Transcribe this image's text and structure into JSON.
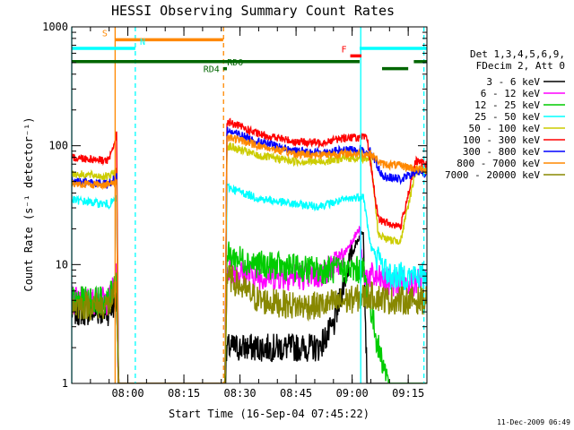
{
  "chart_data": {
    "type": "line",
    "title": "HESSI Observing Summary Count Rates",
    "xlabel": "Start Time (16-Sep-04 07:45:22)",
    "ylabel": "Count Rate (s⁻¹ detector⁻¹)",
    "yscale": "log",
    "ylim": [
      1,
      1000
    ],
    "xlim_minutes": [
      0,
      95
    ],
    "x_ticks": [
      {
        "min": 15,
        "label": "08:00"
      },
      {
        "min": 30,
        "label": "08:15"
      },
      {
        "min": 45,
        "label": "08:30"
      },
      {
        "min": 60,
        "label": "08:45"
      },
      {
        "min": 75,
        "label": "09:00"
      },
      {
        "min": 90,
        "label": "09:15"
      }
    ],
    "y_ticks": [
      {
        "v": 1,
        "label": "1"
      },
      {
        "v": 10,
        "label": "10"
      },
      {
        "v": 100,
        "label": "100"
      },
      {
        "v": 1000,
        "label": "1000"
      }
    ],
    "legend": {
      "placement": "right",
      "header": [
        "Det 1,3,4,5,6,9,",
        "FDecim 2, Att 0"
      ]
    },
    "series": [
      {
        "name": "3 - 6 keV",
        "color": "#000000",
        "points": [
          [
            0,
            4
          ],
          [
            10,
            4
          ],
          [
            12,
            5
          ],
          [
            12.5,
            1
          ],
          [
            41,
            1
          ],
          [
            41.5,
            2
          ],
          [
            52,
            2
          ],
          [
            66,
            2
          ],
          [
            70,
            3
          ],
          [
            74,
            10
          ],
          [
            76,
            15
          ],
          [
            78,
            20
          ],
          [
            79,
            1
          ],
          [
            95,
            1
          ]
        ]
      },
      {
        "name": "6 - 12 keV",
        "color": "#ff00ff",
        "points": [
          [
            0,
            5
          ],
          [
            10,
            5
          ],
          [
            12,
            8
          ],
          [
            12.5,
            1
          ],
          [
            41,
            1
          ],
          [
            41.5,
            9
          ],
          [
            50,
            8
          ],
          [
            66,
            8
          ],
          [
            72,
            11
          ],
          [
            75,
            16
          ],
          [
            77,
            20
          ],
          [
            78,
            8
          ],
          [
            80,
            8
          ],
          [
            85,
            7
          ],
          [
            95,
            7
          ]
        ]
      },
      {
        "name": "12 - 25 keV",
        "color": "#00cc00",
        "points": [
          [
            0,
            5
          ],
          [
            10,
            5
          ],
          [
            12,
            8
          ],
          [
            12.5,
            1
          ],
          [
            41,
            1
          ],
          [
            41.5,
            12
          ],
          [
            50,
            10
          ],
          [
            66,
            9
          ],
          [
            78,
            9
          ],
          [
            82,
            2
          ],
          [
            85,
            1
          ],
          [
            95,
            1
          ]
        ]
      },
      {
        "name": "25 - 50 keV",
        "color": "#00ffff",
        "points": [
          [
            0,
            35
          ],
          [
            10,
            32
          ],
          [
            12,
            36
          ],
          [
            12.5,
            1
          ],
          [
            41,
            1
          ],
          [
            41.5,
            45
          ],
          [
            50,
            36
          ],
          [
            60,
            32
          ],
          [
            66,
            31
          ],
          [
            73,
            35
          ],
          [
            78,
            38
          ],
          [
            80,
            14
          ],
          [
            85,
            8
          ],
          [
            95,
            8
          ]
        ]
      },
      {
        "name": "50 - 100 keV",
        "color": "#cccc00",
        "points": [
          [
            0,
            58
          ],
          [
            10,
            55
          ],
          [
            12,
            62
          ],
          [
            12.5,
            1
          ],
          [
            41,
            1
          ],
          [
            41.5,
            100
          ],
          [
            50,
            82
          ],
          [
            60,
            74
          ],
          [
            66,
            73
          ],
          [
            74,
            79
          ],
          [
            80,
            78
          ],
          [
            82,
            18
          ],
          [
            85,
            16
          ],
          [
            88,
            16
          ],
          [
            92,
            62
          ],
          [
            95,
            60
          ]
        ]
      },
      {
        "name": "100 - 300 keV",
        "color": "#ff0000",
        "points": [
          [
            0,
            80
          ],
          [
            10,
            75
          ],
          [
            12,
            125
          ],
          [
            12.5,
            1
          ],
          [
            41,
            1
          ],
          [
            41.5,
            160
          ],
          [
            50,
            125
          ],
          [
            60,
            108
          ],
          [
            66,
            106
          ],
          [
            74,
            118
          ],
          [
            79,
            116
          ],
          [
            82,
            24
          ],
          [
            85,
            22
          ],
          [
            88,
            21
          ],
          [
            92,
            74
          ],
          [
            95,
            70
          ]
        ]
      },
      {
        "name": "300 - 800 keV",
        "color": "#0000ff",
        "points": [
          [
            0,
            50
          ],
          [
            10,
            48
          ],
          [
            12,
            55
          ],
          [
            12.5,
            1
          ],
          [
            41,
            1
          ],
          [
            41.5,
            135
          ],
          [
            50,
            108
          ],
          [
            60,
            90
          ],
          [
            66,
            88
          ],
          [
            74,
            92
          ],
          [
            80,
            90
          ],
          [
            83,
            56
          ],
          [
            88,
            52
          ],
          [
            92,
            60
          ],
          [
            95,
            58
          ]
        ]
      },
      {
        "name": "800 - 7000 keV",
        "color": "#ff8800",
        "points": [
          [
            0,
            48
          ],
          [
            10,
            47
          ],
          [
            12,
            50
          ],
          [
            12.5,
            1
          ],
          [
            41,
            1
          ],
          [
            41.5,
            120
          ],
          [
            50,
            100
          ],
          [
            60,
            85
          ],
          [
            66,
            84
          ],
          [
            74,
            86
          ],
          [
            80,
            85
          ],
          [
            83,
            70
          ],
          [
            88,
            68
          ],
          [
            92,
            64
          ],
          [
            95,
            62
          ]
        ]
      },
      {
        "name": "7000 - 20000 keV",
        "color": "#888800",
        "points": [
          [
            0,
            4.5
          ],
          [
            10,
            4.5
          ],
          [
            12,
            6
          ],
          [
            12.5,
            1
          ],
          [
            41,
            1
          ],
          [
            41.5,
            8
          ],
          [
            50,
            5
          ],
          [
            60,
            4.5
          ],
          [
            66,
            4.5
          ],
          [
            74,
            5
          ],
          [
            80,
            5.5
          ],
          [
            85,
            5
          ],
          [
            90,
            5
          ],
          [
            95,
            5
          ]
        ]
      }
    ],
    "flags": [
      {
        "label": "S",
        "color": "#ff8800",
        "start_min": 11.5,
        "end_min": 40.5,
        "level": 780
      },
      {
        "label": "N",
        "color": "#00ffff",
        "start_min": 0,
        "end_min": 17,
        "level": 660
      },
      {
        "label": "",
        "color": "#00ffff",
        "start_min": 77,
        "end_min": 95,
        "level": 660
      },
      {
        "label": "F",
        "color": "#ff0000",
        "start_min": 74.5,
        "end_min": 77.5,
        "level": 570
      },
      {
        "label": "RD0",
        "color": "#006600",
        "start_min": 0,
        "end_min": 77,
        "level": 510
      },
      {
        "label": "",
        "color": "#006600",
        "start_min": 91.5,
        "end_min": 95,
        "level": 510
      },
      {
        "label": "RD4",
        "color": "#006600",
        "start_min": 40.5,
        "end_min": 41.5,
        "level": 445
      },
      {
        "label": "",
        "color": "#006600",
        "start_min": 83,
        "end_min": 90,
        "level": 445
      }
    ],
    "vlines": [
      {
        "min": 0,
        "color": "#00ffff",
        "dash": false
      },
      {
        "min": 11.6,
        "color": "#ff8800",
        "dash": false
      },
      {
        "min": 17,
        "color": "#00ffff",
        "dash": true
      },
      {
        "min": 40.6,
        "color": "#ff8800",
        "dash": true
      },
      {
        "min": 77.3,
        "color": "#00ffff",
        "dash": false
      },
      {
        "min": 94.2,
        "color": "#00ffff",
        "dash": true
      }
    ],
    "date_stamp": "11-Dec-2009 06:49"
  }
}
